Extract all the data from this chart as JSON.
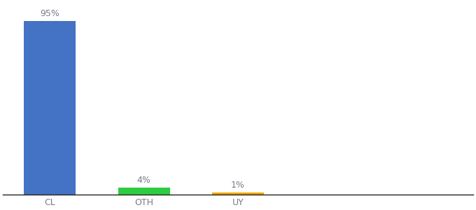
{
  "categories": [
    "CL",
    "OTH",
    "UY"
  ],
  "values": [
    95,
    4,
    1
  ],
  "bar_colors": [
    "#4472c4",
    "#2ecc40",
    "#f0a500"
  ],
  "bar_labels": [
    "95%",
    "4%",
    "1%"
  ],
  "background_color": "#ffffff",
  "ylim": [
    0,
    105
  ],
  "label_fontsize": 9,
  "tick_fontsize": 9,
  "bar_width": 0.55,
  "x_positions": [
    0,
    1,
    2
  ],
  "xlim": [
    -0.5,
    4.5
  ],
  "label_color": "#7a7a8a",
  "tick_color": "#7a7a8a"
}
